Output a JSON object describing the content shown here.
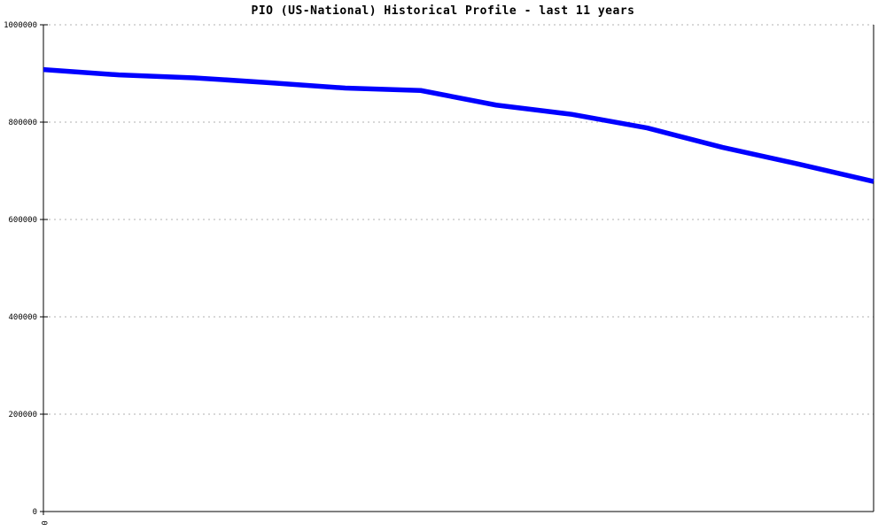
{
  "chart": {
    "title": "PIO (US-National) Historical Profile - last 11 years",
    "colors": {
      "line": "#0000ff",
      "grid": "#b0b0b0",
      "axis": "#000000",
      "background": "#ffffff",
      "text": "#000000"
    }
  },
  "chart_data": {
    "type": "line",
    "title": "PIO (US-National) Historical Profile - last 11 years",
    "xlabel": "",
    "ylabel": "",
    "x": [
      0,
      1,
      2,
      3,
      4,
      5,
      6,
      7,
      8,
      9,
      10,
      11
    ],
    "values": [
      908000,
      897000,
      891000,
      881000,
      870000,
      865000,
      835000,
      816000,
      788000,
      748000,
      714000,
      678000
    ],
    "xlim": [
      0,
      11
    ],
    "ylim": [
      0,
      1000000
    ],
    "xticks": [
      0
    ],
    "xtick_labels": [
      "0"
    ],
    "xtick_rotation": 90,
    "yticks": [
      0,
      200000,
      400000,
      600000,
      800000,
      1000000
    ],
    "ytick_labels": [
      "0",
      "200000",
      "400000",
      "600000",
      "800000",
      "1000000"
    ],
    "grid": true,
    "legend": false
  }
}
